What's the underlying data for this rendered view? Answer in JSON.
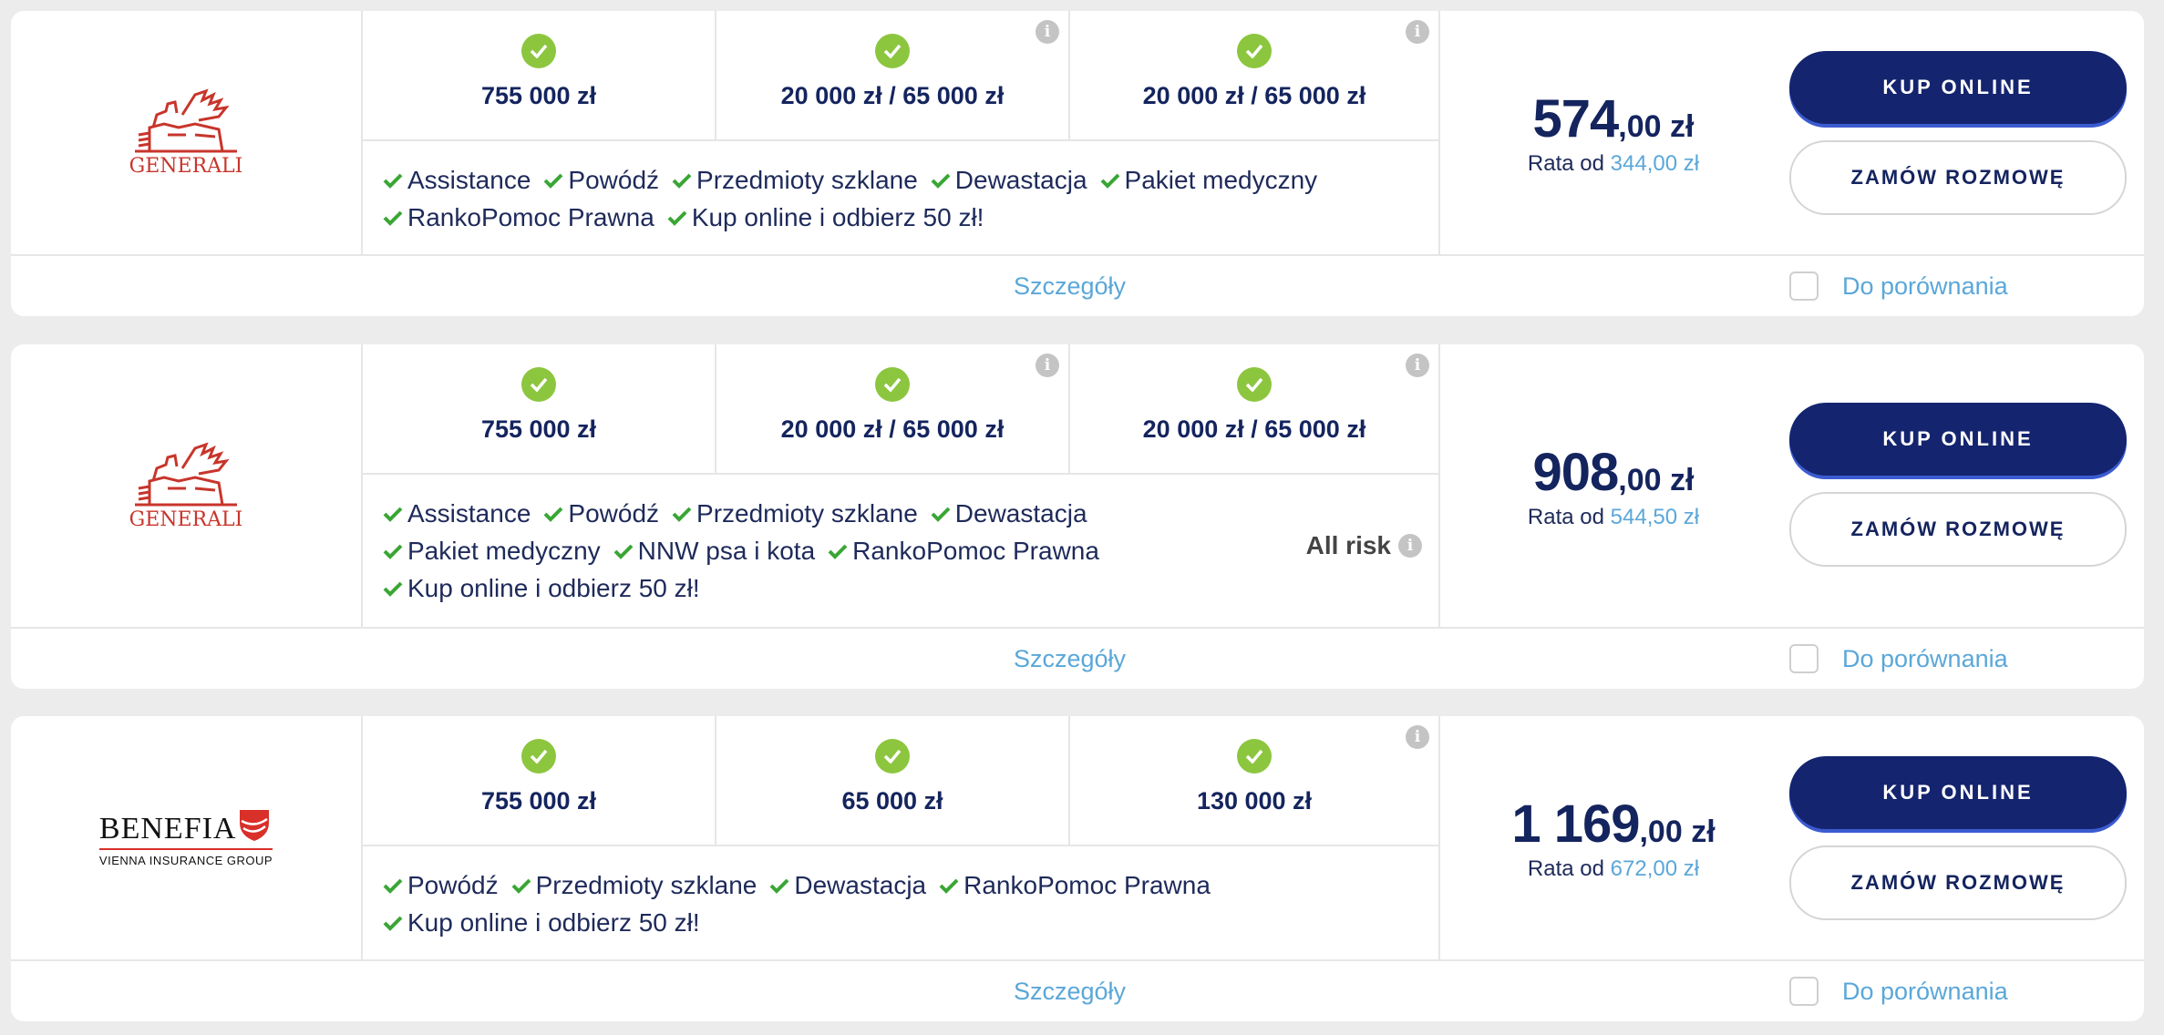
{
  "colors": {
    "navy": "#14245e",
    "accent_blue": "#5aa7d9",
    "check_green": "#8cc63f",
    "generali_red": "#c8352b",
    "benefia_red": "#d9302a"
  },
  "offers": [
    {
      "insurer": "GENERALI",
      "insurer_sub": "",
      "coverages": [
        {
          "value": "755 000 zł",
          "info": false
        },
        {
          "value": "20 000 zł / 65 000 zł",
          "info": true
        },
        {
          "value": "20 000 zł / 65 000 zł",
          "info": true
        }
      ],
      "features": [
        [
          "Assistance",
          "Powódź",
          "Przedmioty szklane",
          "Dewastacja",
          "Pakiet medyczny"
        ],
        [
          "RankoPomoc Prawna",
          "Kup online i odbierz 50 zł!"
        ]
      ],
      "all_risk": "",
      "price_main": "574",
      "price_rest": ",00 zł",
      "rata_label": "Rata od",
      "rata_value": "344,00 zł",
      "buy_label": "KUP ONLINE",
      "call_label": "ZAMÓW ROZMOWĘ",
      "details_label": "Szczegóły",
      "compare_label": "Do porównania"
    },
    {
      "insurer": "GENERALI",
      "insurer_sub": "",
      "coverages": [
        {
          "value": "755 000 zł",
          "info": false
        },
        {
          "value": "20 000 zł / 65 000 zł",
          "info": true
        },
        {
          "value": "20 000 zł / 65 000 zł",
          "info": true
        }
      ],
      "features": [
        [
          "Assistance",
          "Powódź",
          "Przedmioty szklane",
          "Dewastacja"
        ],
        [
          "Pakiet medyczny",
          "NNW psa i kota",
          "RankoPomoc Prawna"
        ],
        [
          "Kup online i odbierz 50 zł!"
        ]
      ],
      "all_risk": "All risk",
      "price_main": "908",
      "price_rest": ",00 zł",
      "rata_label": "Rata od",
      "rata_value": "544,50 zł",
      "buy_label": "KUP ONLINE",
      "call_label": "ZAMÓW ROZMOWĘ",
      "details_label": "Szczegóły",
      "compare_label": "Do porównania"
    },
    {
      "insurer": "BENEFIA",
      "insurer_sub": "VIENNA INSURANCE GROUP",
      "coverages": [
        {
          "value": "755 000 zł",
          "info": false
        },
        {
          "value": "65 000 zł",
          "info": false
        },
        {
          "value": "130 000 zł",
          "info": true
        }
      ],
      "features": [
        [
          "Powódź",
          "Przedmioty szklane",
          "Dewastacja",
          "RankoPomoc Prawna"
        ],
        [
          "Kup online i odbierz 50 zł!"
        ]
      ],
      "all_risk": "",
      "price_main": "1 169",
      "price_rest": ",00 zł",
      "rata_label": "Rata od",
      "rata_value": "672,00 zł",
      "buy_label": "KUP ONLINE",
      "call_label": "ZAMÓW ROZMOWĘ",
      "details_label": "Szczegóły",
      "compare_label": "Do porównania"
    }
  ]
}
